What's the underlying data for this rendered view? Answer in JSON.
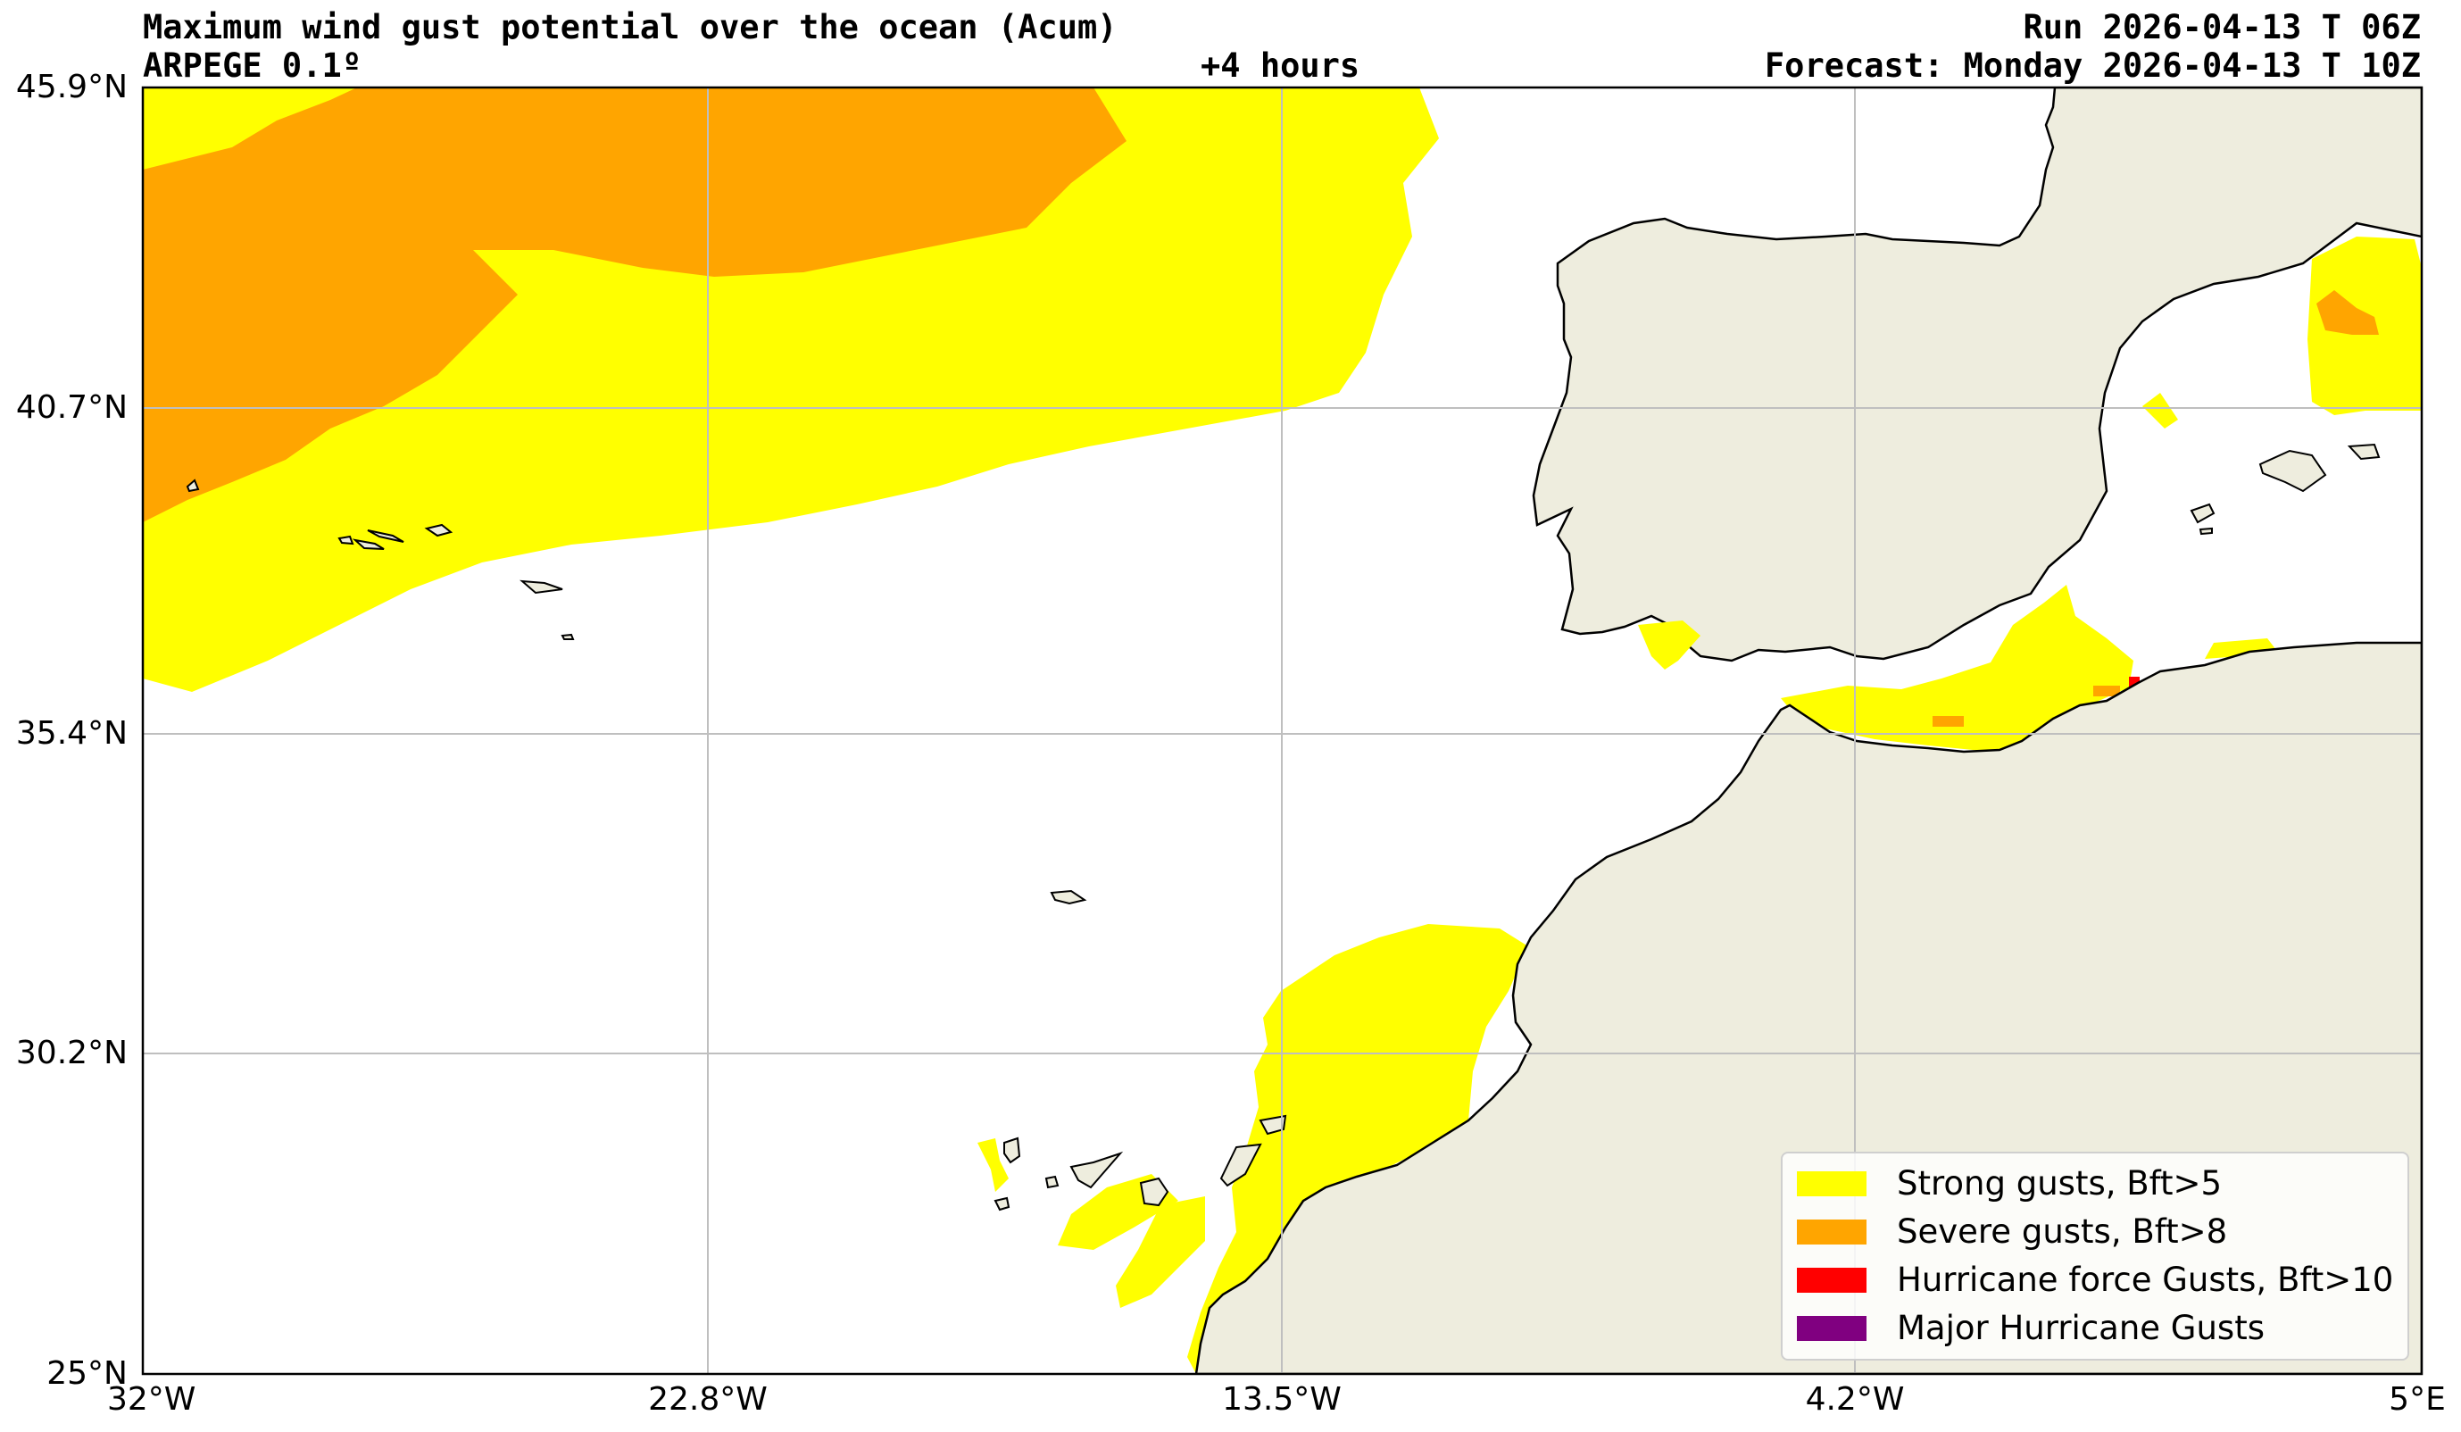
{
  "header": {
    "title": "Maximum wind gust potential over the ocean (Acum)",
    "model": "ARPEGE 0.1º",
    "lead_time": "+4 hours",
    "run": "Run 2026-04-13 T 06Z",
    "forecast": "Forecast: Monday 2026-04-13 T 10Z"
  },
  "axes": {
    "lat_ticks": [
      "45.9°N",
      "40.7°N",
      "35.4°N",
      "30.2°N",
      "25°N"
    ],
    "lon_ticks": [
      "32°W",
      "22.8°W",
      "13.5°W",
      "4.2°W",
      "5°E"
    ]
  },
  "colors": {
    "ocean": "#ffffff",
    "land": "#eeedde",
    "coastline": "#000000",
    "grid": "#bfbfbf",
    "strong": "#ffff00",
    "severe": "#ffa500",
    "hurricane": "#ff0000",
    "major": "#800080"
  },
  "legend": {
    "items": [
      {
        "label": "Strong gusts, Bft>5",
        "color": "#ffff00"
      },
      {
        "label": "Severe gusts, Bft>8",
        "color": "#ffa500"
      },
      {
        "label": "Hurricane force Gusts, Bft>10",
        "color": "#ff0000"
      },
      {
        "label": "Major Hurricane Gusts",
        "color": "#800080"
      }
    ]
  }
}
